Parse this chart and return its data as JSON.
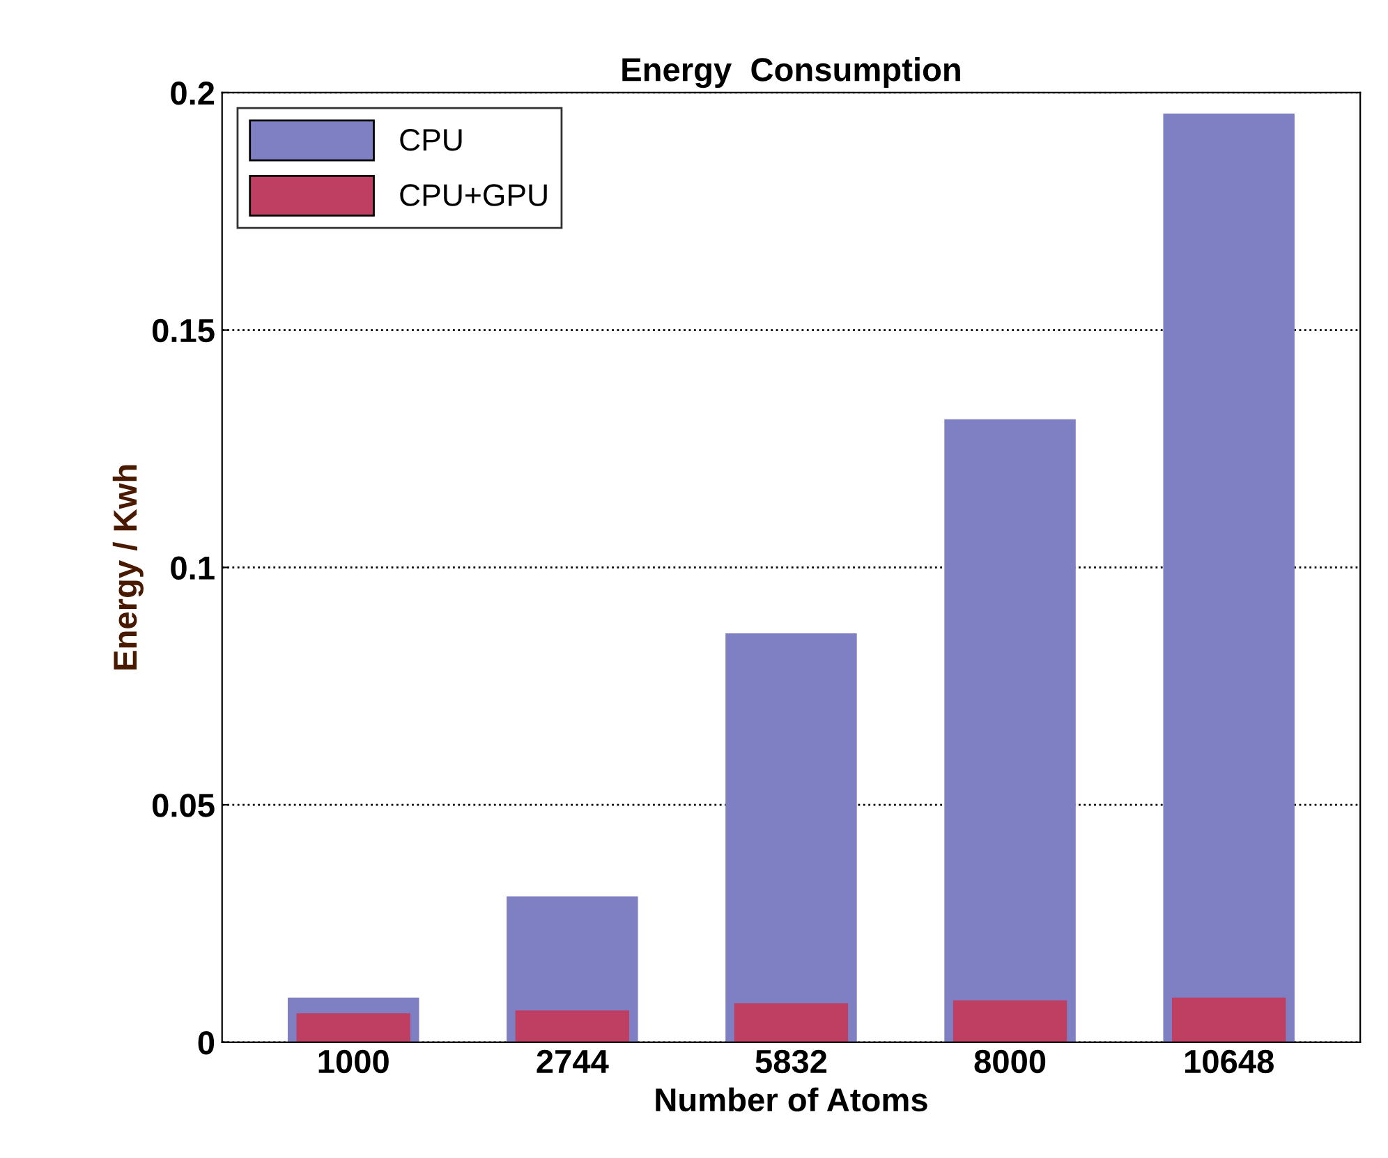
{
  "chart_data": {
    "type": "bar",
    "title": "Energy  Consumption",
    "xlabel": "Number of Atoms",
    "ylabel": "Energy / Kwh",
    "categories": [
      "1000",
      "2744",
      "5832",
      "8000",
      "10648"
    ],
    "series": [
      {
        "name": "CPU",
        "color": "#7f7fc4",
        "values": [
          0.0094,
          0.0307,
          0.0861,
          0.1312,
          0.1956
        ]
      },
      {
        "name": "CPU+GPU",
        "color": "#bf3f62",
        "values": [
          0.0061,
          0.0067,
          0.0082,
          0.0088,
          0.0094
        ]
      }
    ],
    "ylim": [
      0,
      0.2
    ],
    "yticks": [
      0,
      0.05,
      {
        "value": 0.1,
        "label": "0.1"
      },
      0.15,
      {
        "value": 0.2,
        "label": "0.2"
      }
    ],
    "grid": "y",
    "legend": "top left"
  }
}
